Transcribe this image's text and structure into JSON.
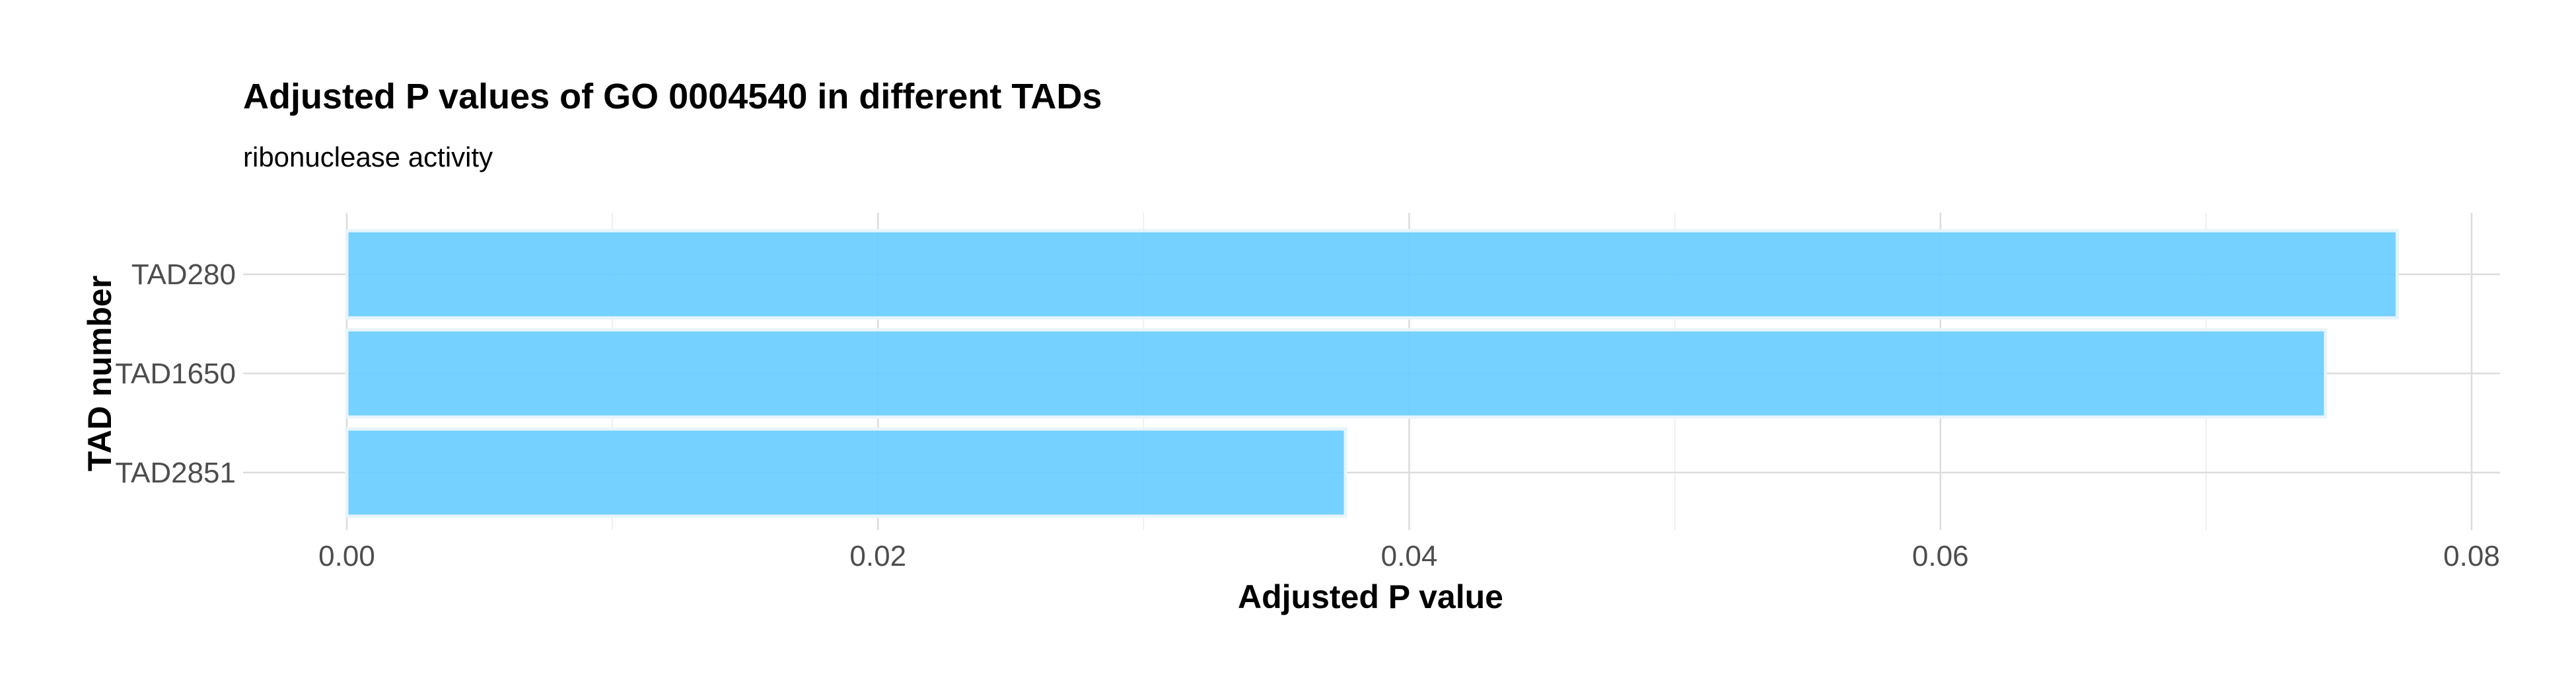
{
  "chart_data": {
    "type": "bar",
    "orientation": "horizontal",
    "title": "Adjusted P values of GO 0004540 in different TADs",
    "subtitle": "ribonuclease activity",
    "xlabel": "Adjusted P value",
    "ylabel": "TAD number",
    "categories": [
      "TAD280",
      "TAD1650",
      "TAD2851"
    ],
    "values": [
      0.0772,
      0.0745,
      0.0376
    ],
    "xlim": [
      0,
      0.08
    ],
    "x_ticks": [
      "0.00",
      "0.02",
      "0.04",
      "0.06",
      "0.08"
    ],
    "x_tick_values": [
      0,
      0.02,
      0.04,
      0.06,
      0.08
    ],
    "x_minor_values": [
      0.01,
      0.03,
      0.05,
      0.07
    ],
    "bar_color": "#66ccff",
    "grid": true,
    "legend": "none"
  }
}
